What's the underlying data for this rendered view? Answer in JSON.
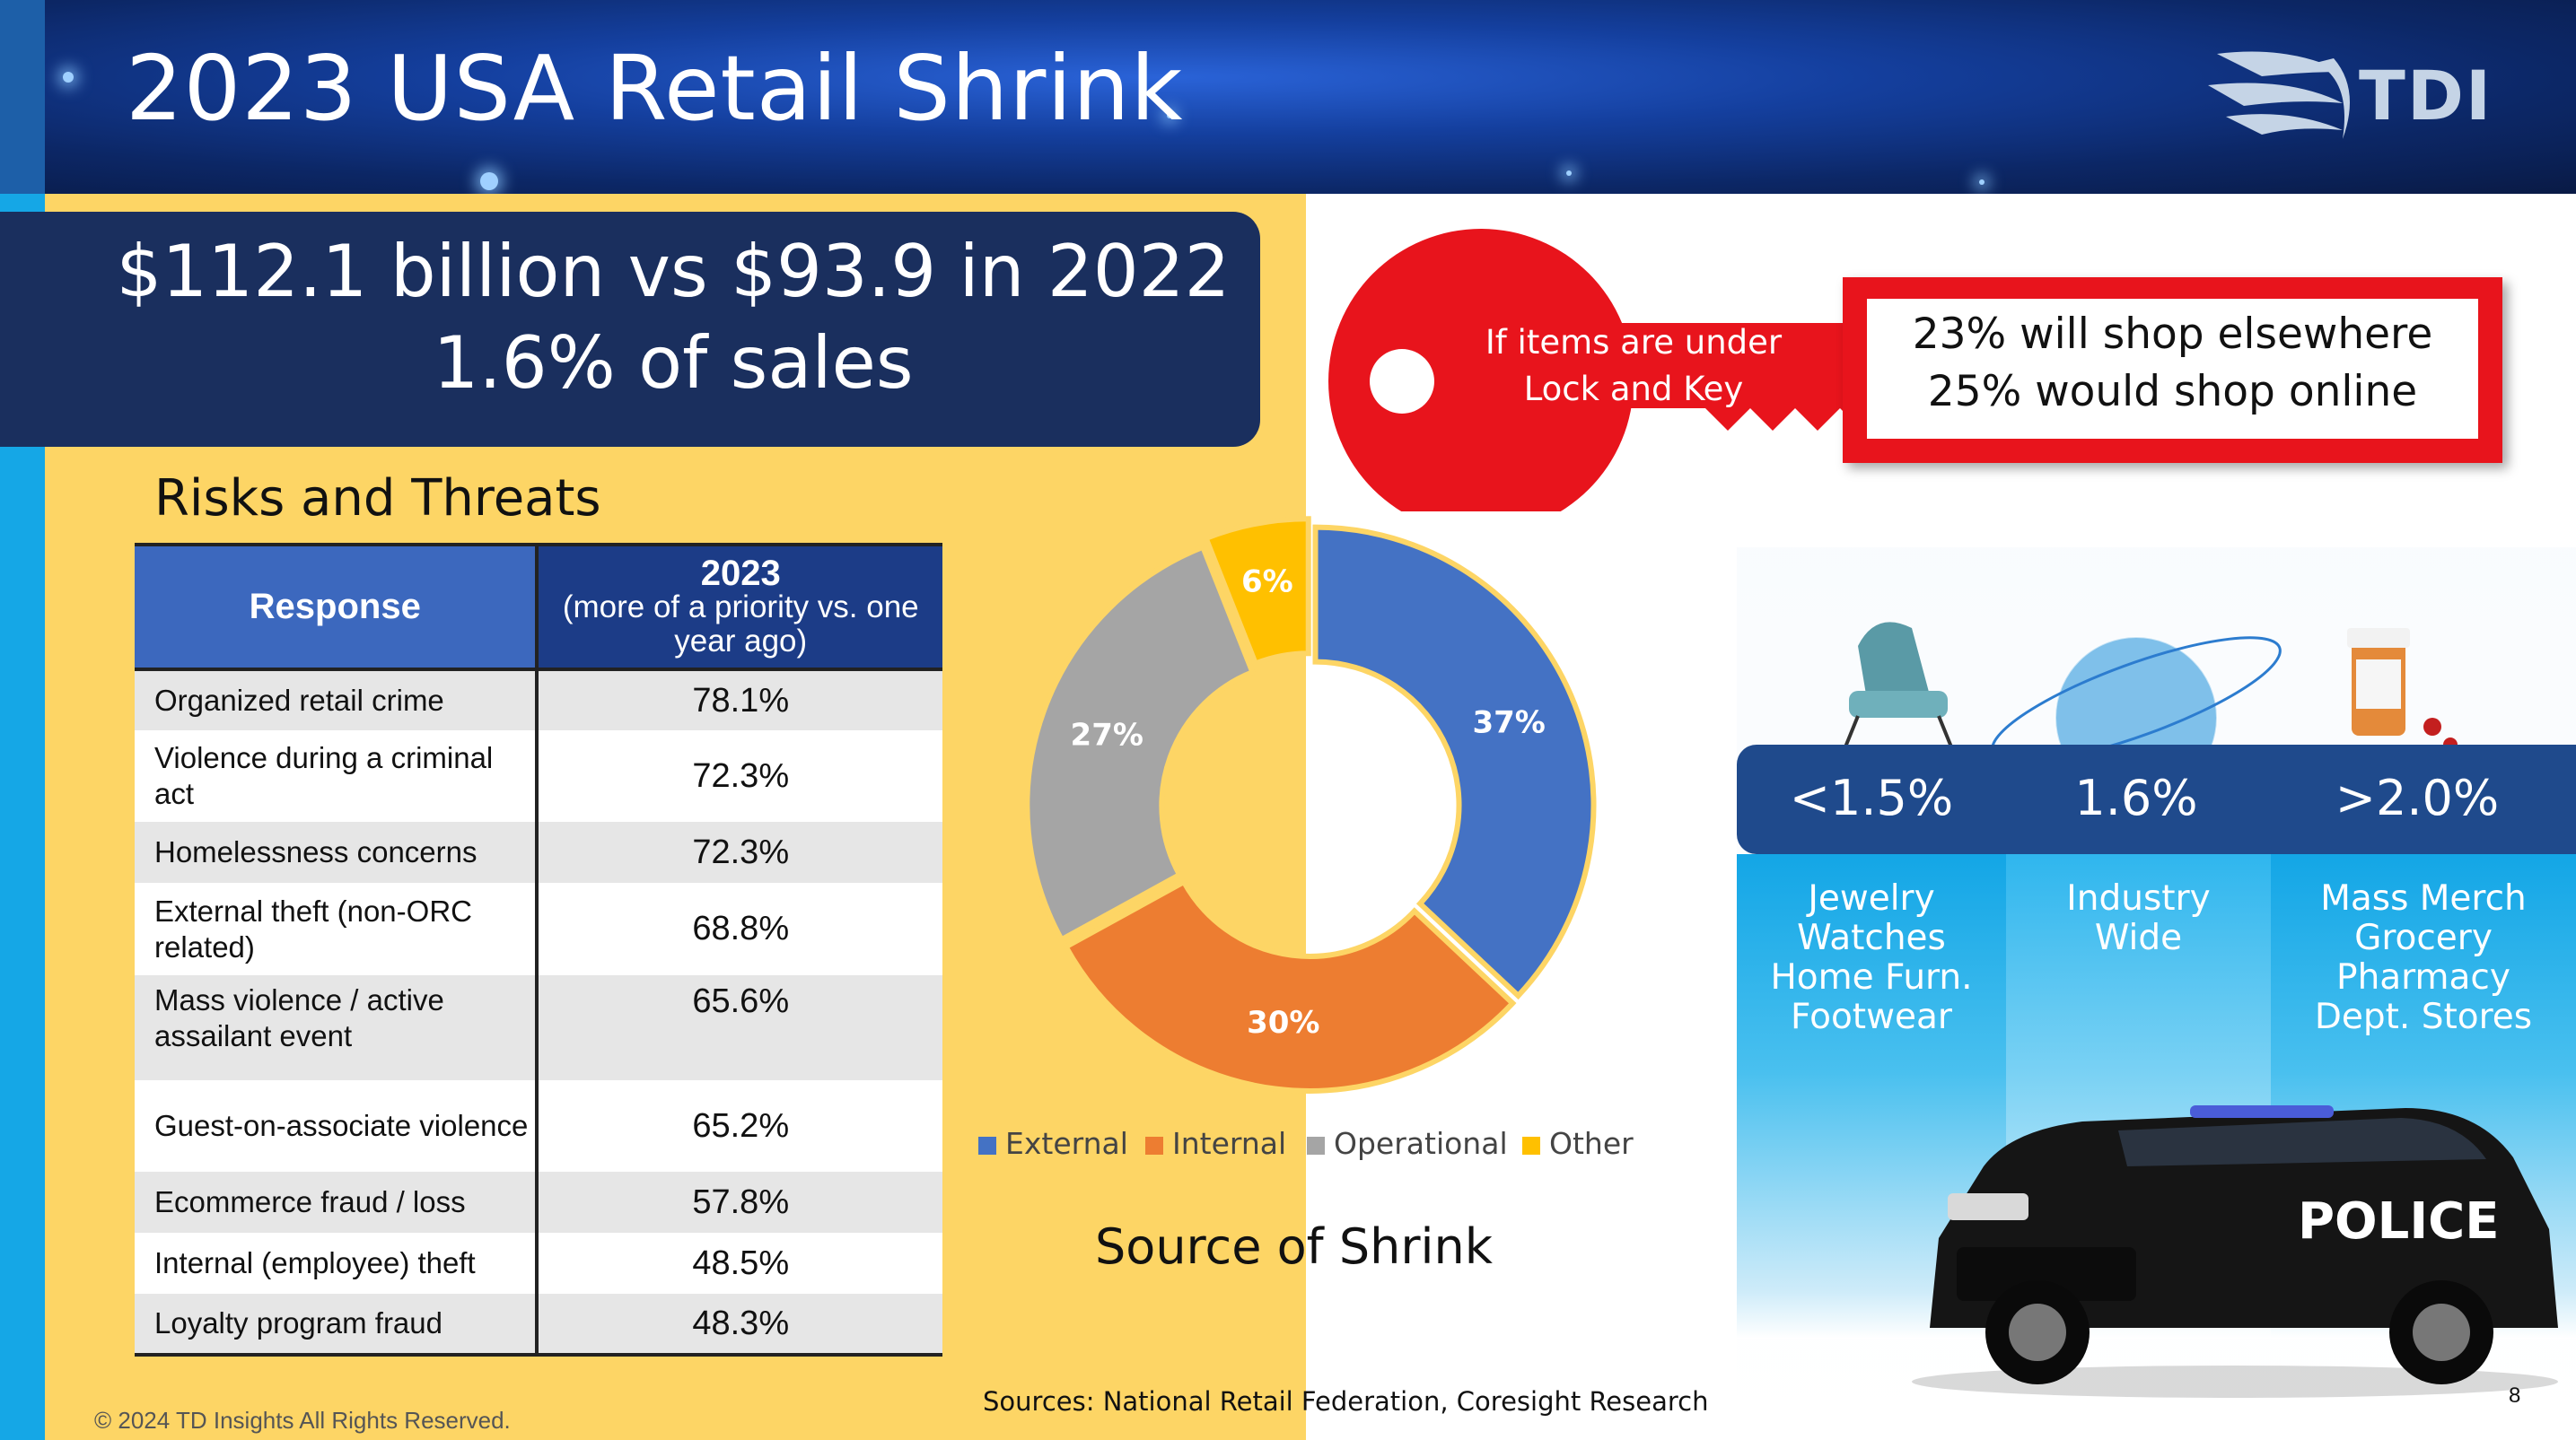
{
  "slide": {
    "title": "2023 USA Retail Shrink",
    "logo_text": "TDI",
    "page_number": "8"
  },
  "headline": {
    "line1": "$112.1 billion vs $93.9 in 2022",
    "line2": "1.6% of sales"
  },
  "risks": {
    "heading": "Risks and Threats",
    "columns": {
      "response": "Response",
      "year": "2023",
      "year_note": "(more of a priority vs. one year ago)"
    },
    "rows": [
      {
        "label": "Organized retail crime",
        "value": "78.1%"
      },
      {
        "label": "Violence during a criminal act",
        "value": "72.3%"
      },
      {
        "label": "Homelessness concerns",
        "value": "72.3%"
      },
      {
        "label": "External theft (non-ORC related)",
        "value": "68.8%"
      },
      {
        "label": "Mass violence / active assailant event",
        "value": "65.6%"
      },
      {
        "label": "Guest-on-associate violence",
        "value": "65.2%"
      },
      {
        "label": "Ecommerce fraud / loss",
        "value": "57.8%"
      },
      {
        "label": "Internal (employee) theft",
        "value": "48.5%"
      },
      {
        "label": "Loyalty program fraud",
        "value": "48.3%"
      }
    ]
  },
  "chart_data": {
    "type": "pie",
    "title": "Source of Shrink",
    "categories": [
      "External",
      "Internal",
      "Operational",
      "Other"
    ],
    "values": [
      37,
      30,
      27,
      6
    ],
    "labels": [
      "37%",
      "30%",
      "27%",
      "6%"
    ],
    "colors": [
      "#4472c4",
      "#ed7d31",
      "#a5a5a5",
      "#ffc000"
    ],
    "legend_position": "bottom",
    "donut": true
  },
  "key_callout": {
    "line1": "If items are under",
    "line2": "Lock and Key"
  },
  "shopper_response": {
    "line1": "23% will shop elsewhere",
    "line2": "25% would shop online"
  },
  "shrink_by_segment": [
    {
      "rate": "<1.5%",
      "lines": [
        "Jewelry",
        "Watches",
        "Home Furn.",
        "Footwear"
      ]
    },
    {
      "rate": "1.6%",
      "lines": [
        "Industry",
        "Wide"
      ]
    },
    {
      "rate": ">2.0%",
      "lines": [
        "Mass Merch",
        "Grocery",
        "Pharmacy",
        "Dept. Stores"
      ]
    }
  ],
  "car_text": "POLICE",
  "sources": "Sources: National Retail Federation, Coresight Research",
  "copyright": "© 2024 TD Insights All Rights Reserved.",
  "colors": {
    "header_blue": "#0c2766",
    "headline_navy": "#1a2f5e",
    "yellow_bg": "#fdd565",
    "accent_cyan": "#15a7e6",
    "key_red": "#e8141c"
  }
}
